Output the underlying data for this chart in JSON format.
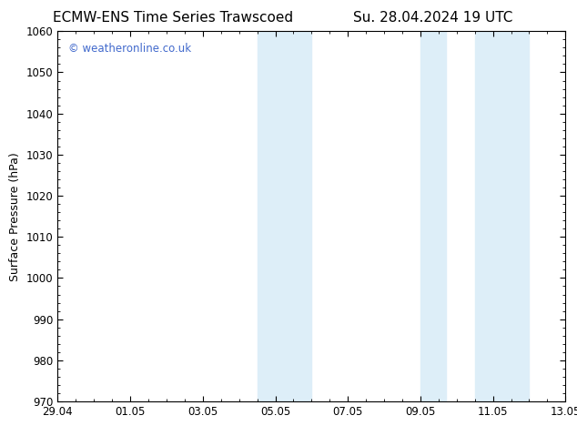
{
  "title_left": "ECMW-ENS Time Series Trawscoed",
  "title_right": "Su. 28.04.2024 19 UTC",
  "ylabel": "Surface Pressure (hPa)",
  "ylim": [
    970,
    1060
  ],
  "yticks": [
    970,
    980,
    990,
    1000,
    1010,
    1020,
    1030,
    1040,
    1050,
    1060
  ],
  "xlim_start": 0,
  "xlim_end": 14,
  "xtick_positions": [
    0,
    2,
    4,
    6,
    8,
    10,
    12,
    14
  ],
  "xtick_labels": [
    "29.04",
    "01.05",
    "03.05",
    "05.05",
    "07.05",
    "09.05",
    "11.05",
    "13.05"
  ],
  "shaded_bands": [
    {
      "x_start": 5.5,
      "x_end": 7.0
    },
    {
      "x_start": 10.0,
      "x_end": 10.7
    },
    {
      "x_start": 11.5,
      "x_end": 13.0
    }
  ],
  "watermark_text": "© weatheronline.co.uk",
  "watermark_color": "#4169cc",
  "background_color": "#ffffff",
  "plot_background": "#ffffff",
  "shade_color": "#ddeef8",
  "border_color": "#000000",
  "title_fontsize": 11,
  "axis_fontsize": 9,
  "tick_fontsize": 8.5,
  "watermark_fontsize": 8.5
}
